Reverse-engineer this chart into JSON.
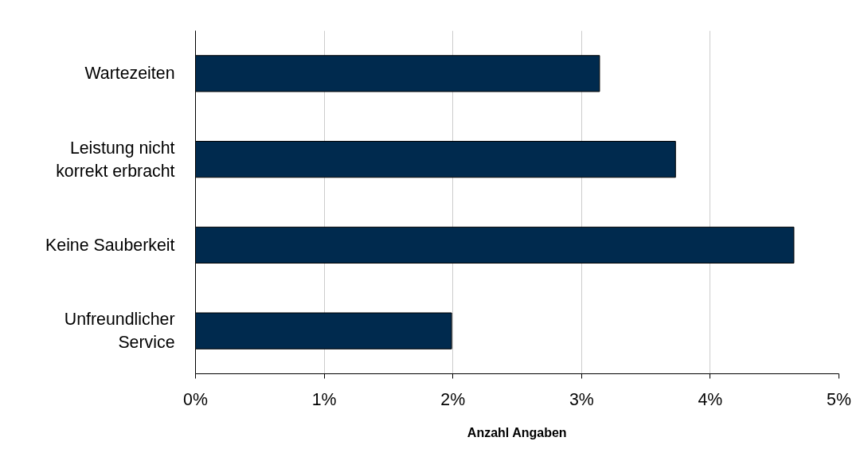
{
  "chart_data": {
    "type": "bar",
    "orientation": "horizontal",
    "xlabel": "Anzahl Angaben",
    "categories": [
      "Wartezeiten",
      "Leistung nicht korrekt erbracht",
      "Keine Sauberkeit",
      "Unfreundlicher Service"
    ],
    "values": [
      3.14,
      3.73,
      4.65,
      1.99
    ],
    "color": "#002a4e",
    "xlim": [
      0,
      5
    ],
    "xticks": [
      {
        "value": 0,
        "label": "0%"
      },
      {
        "value": 1,
        "label": "1%"
      },
      {
        "value": 2,
        "label": "2%"
      },
      {
        "value": 3,
        "label": "3%"
      },
      {
        "value": 4,
        "label": "4%"
      },
      {
        "value": 5,
        "label": "5%"
      }
    ],
    "grid": "x"
  }
}
